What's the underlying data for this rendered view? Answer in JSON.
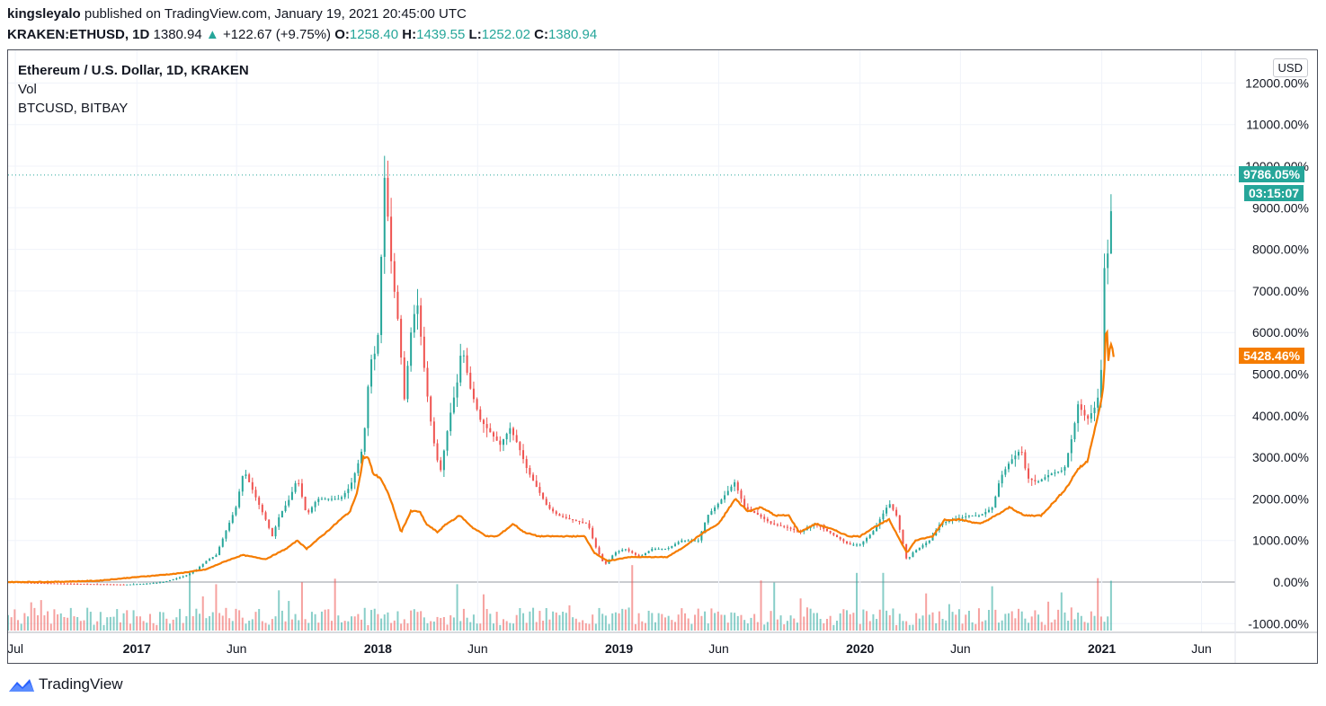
{
  "header": {
    "user": "kingsleyalo",
    "published_text": "published on TradingView.com, January 19, 2021 20:45:00 UTC"
  },
  "ohlc": {
    "symbol": "KRAKEN:ETHUSD, 1D",
    "last": "1380.94",
    "arrow": "▲",
    "change": "+122.67 (+9.75%)",
    "o_label": "O:",
    "o_value": "1258.40",
    "h_label": "H:",
    "h_value": "1439.55",
    "l_label": "L:",
    "l_value": "1252.02",
    "c_label": "C:",
    "c_value": "1380.94"
  },
  "legend": {
    "main": "Ethereum / U.S. Dollar, 1D, KRAKEN",
    "vol": "Vol",
    "compare": "BTCUSD, BITBAY"
  },
  "currency_button": "USD",
  "tags": {
    "eth_pct": "9786.05%",
    "countdown": "03:15:07",
    "btc_pct": "5428.46%"
  },
  "colors": {
    "up": "#26a69a",
    "down": "#ef5350",
    "btc_line": "#f57c00",
    "grid": "#f0f3fa",
    "brand": "#2962ff"
  },
  "footer": {
    "brand": "TradingView",
    "icon": "tradingview-logo-icon"
  },
  "chart_data": {
    "type": "line",
    "title": "Ethereum / U.S. Dollar, 1D, KRAKEN",
    "y_unit": "percent change",
    "ylim": [
      -1200,
      12000
    ],
    "y_ticks": [
      "12000.00%",
      "11000.00%",
      "10000.00%",
      "9000.00%",
      "8000.00%",
      "7000.00%",
      "6000.00%",
      "5000.00%",
      "4000.00%",
      "3000.00%",
      "2000.00%",
      "1000.00%",
      "0.00%",
      "-1000.00%"
    ],
    "x_ticks": [
      {
        "label": "Jul",
        "date": "2016-07-01",
        "strong": false
      },
      {
        "label": "2017",
        "date": "2017-01-01",
        "strong": true
      },
      {
        "label": "Jun",
        "date": "2017-06-01",
        "strong": false
      },
      {
        "label": "2018",
        "date": "2018-01-01",
        "strong": true
      },
      {
        "label": "Jun",
        "date": "2018-06-01",
        "strong": false
      },
      {
        "label": "2019",
        "date": "2019-01-01",
        "strong": true
      },
      {
        "label": "Jun",
        "date": "2019-06-01",
        "strong": false
      },
      {
        "label": "2020",
        "date": "2020-01-01",
        "strong": true
      },
      {
        "label": "Jun",
        "date": "2020-06-01",
        "strong": false
      },
      {
        "label": "2021",
        "date": "2021-01-01",
        "strong": true
      },
      {
        "label": "Jun",
        "date": "2021-06-01",
        "strong": false
      }
    ],
    "grid": true,
    "series": [
      {
        "name": "ETHUSD",
        "style": "candles",
        "points": [
          [
            "2016-06-20",
            0
          ],
          [
            "2016-08-01",
            -20
          ],
          [
            "2016-09-15",
            -40
          ],
          [
            "2016-11-01",
            -50
          ],
          [
            "2016-12-15",
            -60
          ],
          [
            "2017-01-15",
            -40
          ],
          [
            "2017-02-10",
            0
          ],
          [
            "2017-02-28",
            80
          ],
          [
            "2017-03-15",
            150
          ],
          [
            "2017-03-31",
            280
          ],
          [
            "2017-04-15",
            500
          ],
          [
            "2017-05-01",
            650
          ],
          [
            "2017-05-15",
            1200
          ],
          [
            "2017-05-31",
            1800
          ],
          [
            "2017-06-12",
            2700
          ],
          [
            "2017-06-20",
            2400
          ],
          [
            "2017-07-01",
            2000
          ],
          [
            "2017-07-15",
            1500
          ],
          [
            "2017-07-25",
            1100
          ],
          [
            "2017-08-05",
            1600
          ],
          [
            "2017-08-20",
            2000
          ],
          [
            "2017-09-01",
            2500
          ],
          [
            "2017-09-15",
            1600
          ],
          [
            "2017-10-01",
            2000
          ],
          [
            "2017-10-20",
            2000
          ],
          [
            "2017-11-05",
            2000
          ],
          [
            "2017-11-20",
            2300
          ],
          [
            "2017-12-01",
            2800
          ],
          [
            "2017-12-10",
            3300
          ],
          [
            "2017-12-20",
            5300
          ],
          [
            "2017-12-31",
            5600
          ],
          [
            "2018-01-05",
            7300
          ],
          [
            "2018-01-10",
            9900
          ],
          [
            "2018-01-15",
            9000
          ],
          [
            "2018-01-22",
            7500
          ],
          [
            "2018-02-01",
            6200
          ],
          [
            "2018-02-10",
            4400
          ],
          [
            "2018-02-20",
            6000
          ],
          [
            "2018-03-01",
            6800
          ],
          [
            "2018-03-15",
            4700
          ],
          [
            "2018-03-25",
            3500
          ],
          [
            "2018-04-05",
            2600
          ],
          [
            "2018-04-20",
            4000
          ],
          [
            "2018-05-01",
            4800
          ],
          [
            "2018-05-08",
            5700
          ],
          [
            "2018-05-20",
            4700
          ],
          [
            "2018-06-05",
            3900
          ],
          [
            "2018-06-20",
            3600
          ],
          [
            "2018-07-05",
            3300
          ],
          [
            "2018-07-20",
            3700
          ],
          [
            "2018-08-01",
            3300
          ],
          [
            "2018-08-15",
            2700
          ],
          [
            "2018-09-01",
            2200
          ],
          [
            "2018-09-15",
            1800
          ],
          [
            "2018-10-01",
            1600
          ],
          [
            "2018-10-20",
            1500
          ],
          [
            "2018-11-15",
            1400
          ],
          [
            "2018-11-25",
            900
          ],
          [
            "2018-12-10",
            400
          ],
          [
            "2018-12-25",
            700
          ],
          [
            "2019-01-10",
            800
          ],
          [
            "2019-02-01",
            600
          ],
          [
            "2019-02-20",
            800
          ],
          [
            "2019-03-15",
            800
          ],
          [
            "2019-04-05",
            1000
          ],
          [
            "2019-05-01",
            1000
          ],
          [
            "2019-05-15",
            1600
          ],
          [
            "2019-06-01",
            1900
          ],
          [
            "2019-06-25",
            2400
          ],
          [
            "2019-07-10",
            1800
          ],
          [
            "2019-08-01",
            1600
          ],
          [
            "2019-08-20",
            1400
          ],
          [
            "2019-09-15",
            1300
          ],
          [
            "2019-10-01",
            1200
          ],
          [
            "2019-10-25",
            1400
          ],
          [
            "2019-11-15",
            1200
          ],
          [
            "2019-12-15",
            900
          ],
          [
            "2020-01-01",
            900
          ],
          [
            "2020-01-20",
            1200
          ],
          [
            "2020-02-14",
            1900
          ],
          [
            "2020-02-25",
            1600
          ],
          [
            "2020-03-12",
            500
          ],
          [
            "2020-03-20",
            700
          ],
          [
            "2020-04-15",
            1000
          ],
          [
            "2020-05-01",
            1400
          ],
          [
            "2020-05-20",
            1500
          ],
          [
            "2020-06-15",
            1600
          ],
          [
            "2020-07-01",
            1600
          ],
          [
            "2020-07-20",
            1800
          ],
          [
            "2020-07-31",
            2500
          ],
          [
            "2020-08-15",
            2900
          ],
          [
            "2020-09-01",
            3200
          ],
          [
            "2020-09-10",
            2500
          ],
          [
            "2020-09-25",
            2400
          ],
          [
            "2020-10-15",
            2600
          ],
          [
            "2020-11-05",
            2700
          ],
          [
            "2020-11-20",
            3700
          ],
          [
            "2020-11-25",
            4300
          ],
          [
            "2020-12-10",
            3900
          ],
          [
            "2020-12-25",
            4300
          ],
          [
            "2020-12-31",
            5100
          ],
          [
            "2021-01-04",
            7100
          ],
          [
            "2021-01-08",
            8900
          ],
          [
            "2021-01-11",
            7400
          ],
          [
            "2021-01-14",
            8700
          ],
          [
            "2021-01-19",
            9786
          ]
        ]
      },
      {
        "name": "BTCUSD, BITBAY",
        "style": "line",
        "points": [
          [
            "2016-06-20",
            0
          ],
          [
            "2016-09-01",
            5
          ],
          [
            "2016-11-01",
            30
          ],
          [
            "2017-01-01",
            120
          ],
          [
            "2017-03-01",
            200
          ],
          [
            "2017-04-15",
            300
          ],
          [
            "2017-05-15",
            500
          ],
          [
            "2017-06-10",
            650
          ],
          [
            "2017-07-15",
            550
          ],
          [
            "2017-08-15",
            800
          ],
          [
            "2017-09-01",
            1000
          ],
          [
            "2017-09-15",
            800
          ],
          [
            "2017-10-15",
            1200
          ],
          [
            "2017-11-05",
            1500
          ],
          [
            "2017-11-20",
            1700
          ],
          [
            "2017-12-01",
            2200
          ],
          [
            "2017-12-10",
            3000
          ],
          [
            "2017-12-17",
            3000
          ],
          [
            "2017-12-25",
            2600
          ],
          [
            "2018-01-05",
            2500
          ],
          [
            "2018-01-20",
            2000
          ],
          [
            "2018-02-05",
            1200
          ],
          [
            "2018-02-20",
            1700
          ],
          [
            "2018-03-05",
            1700
          ],
          [
            "2018-03-15",
            1400
          ],
          [
            "2018-04-01",
            1200
          ],
          [
            "2018-04-15",
            1400
          ],
          [
            "2018-05-05",
            1600
          ],
          [
            "2018-05-25",
            1300
          ],
          [
            "2018-06-15",
            1100
          ],
          [
            "2018-07-01",
            1100
          ],
          [
            "2018-07-25",
            1400
          ],
          [
            "2018-08-10",
            1200
          ],
          [
            "2018-09-01",
            1100
          ],
          [
            "2018-10-01",
            1100
          ],
          [
            "2018-11-10",
            1100
          ],
          [
            "2018-11-25",
            700
          ],
          [
            "2018-12-15",
            500
          ],
          [
            "2019-01-15",
            600
          ],
          [
            "2019-02-15",
            600
          ],
          [
            "2019-03-15",
            600
          ],
          [
            "2019-04-05",
            800
          ],
          [
            "2019-05-10",
            1200
          ],
          [
            "2019-06-01",
            1400
          ],
          [
            "2019-06-26",
            2000
          ],
          [
            "2019-07-15",
            1700
          ],
          [
            "2019-08-05",
            1800
          ],
          [
            "2019-08-25",
            1600
          ],
          [
            "2019-09-15",
            1600
          ],
          [
            "2019-10-01",
            1200
          ],
          [
            "2019-10-26",
            1400
          ],
          [
            "2019-11-15",
            1300
          ],
          [
            "2019-12-15",
            1100
          ],
          [
            "2020-01-01",
            1100
          ],
          [
            "2020-01-20",
            1300
          ],
          [
            "2020-02-14",
            1500
          ],
          [
            "2020-03-12",
            700
          ],
          [
            "2020-03-25",
            1000
          ],
          [
            "2020-04-20",
            1100
          ],
          [
            "2020-05-08",
            1500
          ],
          [
            "2020-06-01",
            1500
          ],
          [
            "2020-07-01",
            1400
          ],
          [
            "2020-07-25",
            1600
          ],
          [
            "2020-08-15",
            1800
          ],
          [
            "2020-09-05",
            1600
          ],
          [
            "2020-10-01",
            1600
          ],
          [
            "2020-10-25",
            2000
          ],
          [
            "2020-11-10",
            2300
          ],
          [
            "2020-11-25",
            2700
          ],
          [
            "2020-12-10",
            2900
          ],
          [
            "2020-12-20",
            3600
          ],
          [
            "2020-12-31",
            4300
          ],
          [
            "2021-01-04",
            4800
          ],
          [
            "2021-01-08",
            6300
          ],
          [
            "2021-01-11",
            5300
          ],
          [
            "2021-01-14",
            5800
          ],
          [
            "2021-01-19",
            5428
          ]
        ]
      }
    ]
  }
}
